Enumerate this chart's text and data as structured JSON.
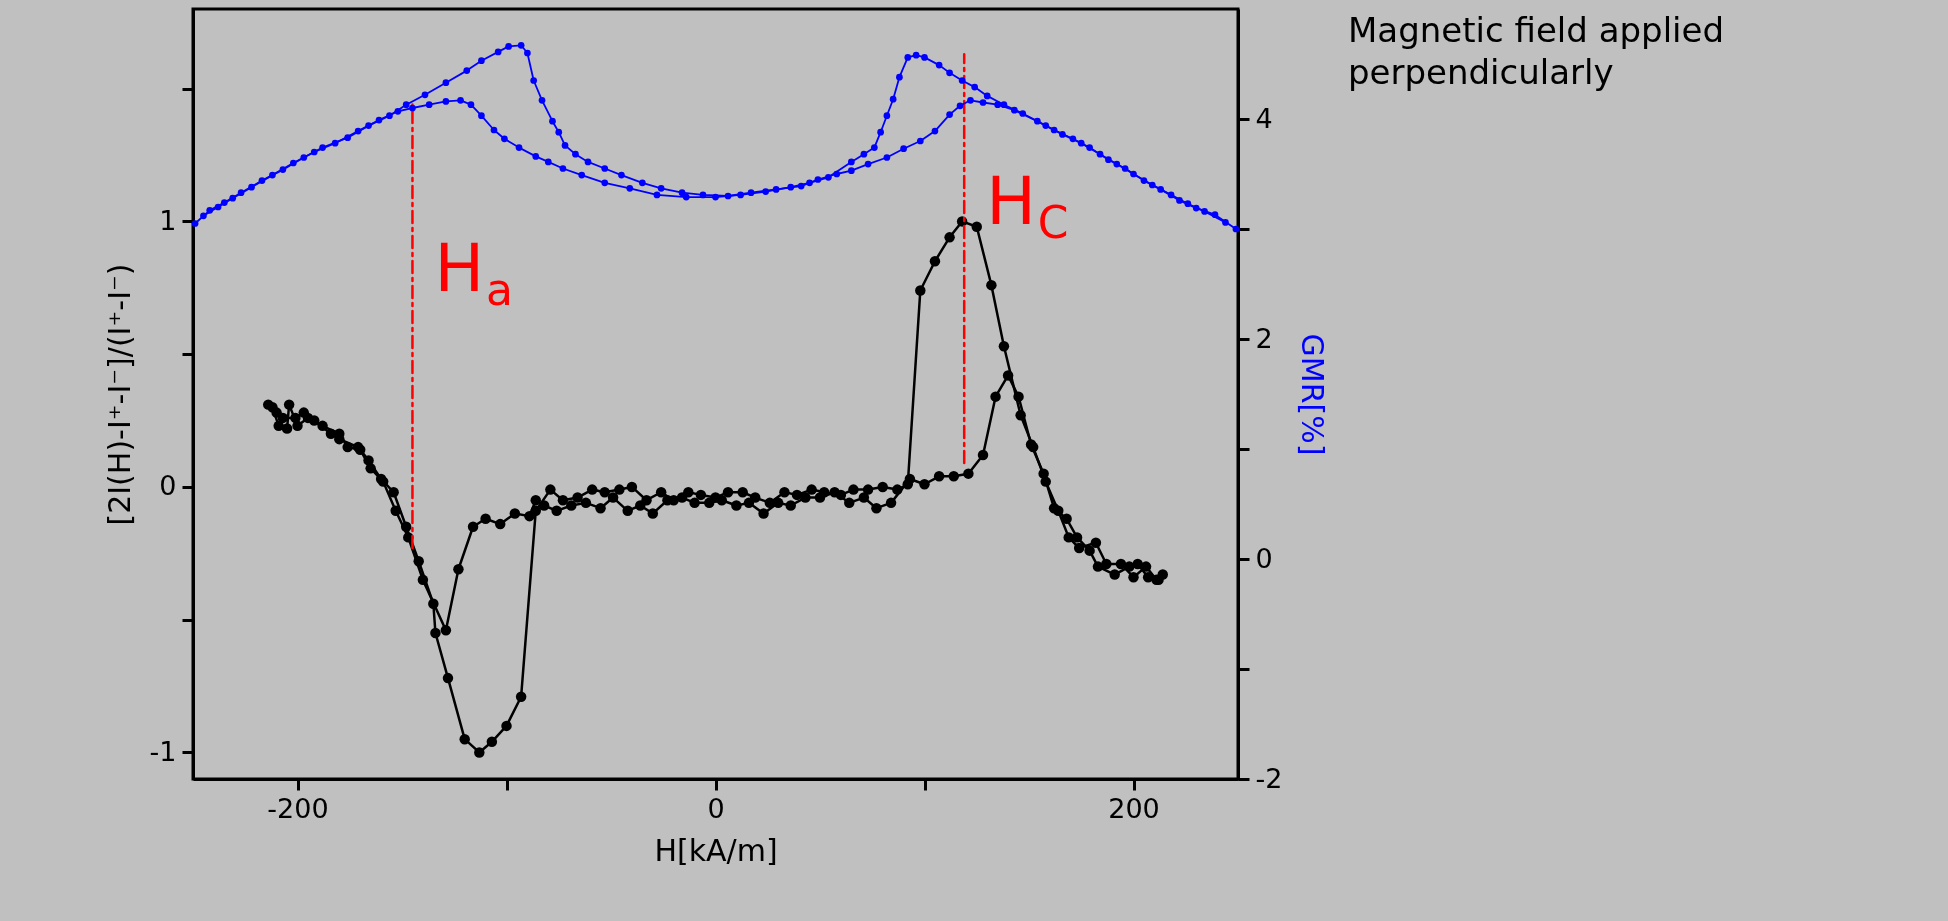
{
  "chart_data": {
    "type": "line",
    "xlabel": "H[kA/m]",
    "ylabel": "[2I(H)-I⁺-I⁻]/(I⁺-I⁻)",
    "y2label": "GMR[%]",
    "xlim": [
      -250,
      250
    ],
    "xticks": [
      -200,
      {
        "value": -100,
        "label": null
      },
      0,
      {
        "value": 100,
        "label": null
      },
      200
    ],
    "ylim": [
      -1.1,
      1.8
    ],
    "yticks": [
      -1,
      {
        "value": -0.5,
        "label": null
      },
      0,
      {
        "value": 0.5,
        "label": null
      },
      1,
      {
        "value": 1.5,
        "label": null
      }
    ],
    "y2lim": [
      -2,
      5
    ],
    "y2ticks": [
      -2,
      {
        "value": -1,
        "label": null
      },
      0,
      {
        "value": 1,
        "label": null
      },
      2,
      {
        "value": 3,
        "label": null
      },
      4
    ],
    "grid": false,
    "marker": "circle",
    "line_style": "solid",
    "series": [
      {
        "color": "#0000ff",
        "axis": "y2",
        "x": [
          -249,
          -242,
          -235,
          -227,
          -217,
          -207,
          -197,
          -188,
          -176,
          -166,
          -156,
          -148,
          -139,
          -129,
          -119,
          -112,
          -104,
          -99,
          -93,
          -90,
          -87,
          -83,
          -78,
          -75,
          -72,
          -67,
          -61,
          -53,
          -45,
          -35,
          -26,
          -16,
          -6,
          6,
          17,
          29,
          41,
          49,
          58,
          65,
          73,
          82,
          90,
          98,
          105,
          112,
          117,
          122,
          128,
          135,
          143,
          154,
          162,
          171,
          179,
          188,
          196,
          205,
          213,
          222,
          230,
          239,
          249
        ],
        "values": [
          3.05,
          3.17,
          3.24,
          3.33,
          3.44,
          3.54,
          3.65,
          3.74,
          3.83,
          3.94,
          4.03,
          4.13,
          4.22,
          4.33,
          4.44,
          4.53,
          4.61,
          4.66,
          4.67,
          4.6,
          4.35,
          4.17,
          3.98,
          3.88,
          3.76,
          3.68,
          3.61,
          3.55,
          3.49,
          3.42,
          3.37,
          3.33,
          3.31,
          3.3,
          3.33,
          3.36,
          3.39,
          3.45,
          3.5,
          3.53,
          3.59,
          3.65,
          3.73,
          3.8,
          3.89,
          4.04,
          4.12,
          4.17,
          4.15,
          4.13,
          4.08,
          3.98,
          3.9,
          3.82,
          3.74,
          3.63,
          3.55,
          3.44,
          3.36,
          3.26,
          3.19,
          3.13,
          3.0
        ]
      },
      {
        "color": "#0000ff",
        "axis": "y2",
        "x": [
          -245,
          -238,
          -231,
          -222,
          -212,
          -202,
          -192,
          -182,
          -171,
          -161,
          -152,
          -145,
          -137,
          -129,
          -122,
          -117,
          -112,
          -106,
          -101,
          -94,
          -86,
          -80,
          -73,
          -64,
          -53,
          -41,
          -28,
          -14,
          0,
          12,
          24,
          36,
          45,
          54,
          65,
          71,
          76,
          79,
          82,
          85,
          88,
          92,
          96,
          100,
          107,
          112,
          118,
          124,
          130,
          138,
          147,
          158,
          166,
          175,
          184,
          192,
          200,
          209,
          218,
          226,
          234,
          244
        ],
        "values": [
          3.12,
          3.2,
          3.28,
          3.38,
          3.49,
          3.6,
          3.7,
          3.78,
          3.89,
          3.99,
          4.07,
          4.1,
          4.13,
          4.16,
          4.17,
          4.13,
          4.03,
          3.9,
          3.82,
          3.74,
          3.66,
          3.61,
          3.55,
          3.49,
          3.42,
          3.37,
          3.31,
          3.29,
          3.29,
          3.31,
          3.34,
          3.38,
          3.42,
          3.47,
          3.61,
          3.68,
          3.74,
          3.88,
          4.03,
          4.18,
          4.38,
          4.56,
          4.58,
          4.56,
          4.49,
          4.42,
          4.35,
          4.29,
          4.21,
          4.13,
          4.05,
          3.94,
          3.86,
          3.78,
          3.68,
          3.59,
          3.5,
          3.4,
          3.31,
          3.23,
          3.16,
          3.06
        ]
      },
      {
        "color": "#000000",
        "x": [
          -214,
          -210,
          -207,
          -201,
          -197,
          -192,
          -184,
          -180,
          -171,
          -166,
          -160,
          -154,
          -148,
          -142,
          -135,
          -134,
          -128,
          -120,
          -113,
          -107,
          -100,
          -93,
          -86,
          -79,
          -73,
          -66,
          -59,
          -53,
          -46,
          -40,
          -33,
          -26,
          -20,
          -13,
          -7,
          0,
          6,
          13,
          19,
          26,
          33,
          39,
          46,
          52,
          60,
          66,
          73,
          80,
          87,
          92,
          98,
          105,
          112,
          118,
          125,
          132,
          138,
          146,
          152,
          158,
          164,
          169,
          174,
          182,
          187,
          194,
          200,
          206,
          211
        ],
        "values": [
          0.31,
          0.28,
          0.26,
          0.26,
          0.28,
          0.25,
          0.2,
          0.18,
          0.15,
          0.1,
          0.03,
          -0.02,
          -0.15,
          -0.28,
          -0.44,
          -0.55,
          -0.72,
          -0.95,
          -1.0,
          -0.96,
          -0.9,
          -0.79,
          -0.09,
          -0.01,
          -0.05,
          -0.04,
          -0.01,
          -0.02,
          -0.01,
          0.0,
          -0.05,
          -0.02,
          -0.05,
          -0.02,
          -0.03,
          -0.04,
          -0.02,
          -0.02,
          -0.04,
          -0.06,
          -0.02,
          -0.03,
          -0.01,
          -0.02,
          -0.03,
          -0.01,
          -0.01,
          0.0,
          -0.01,
          0.01,
          0.74,
          0.85,
          0.94,
          1.0,
          0.98,
          0.76,
          0.53,
          0.27,
          0.15,
          0.02,
          -0.09,
          -0.19,
          -0.23,
          -0.21,
          -0.29,
          -0.29,
          -0.34,
          -0.3,
          -0.35
        ]
      },
      {
        "color": "#000000",
        "x": [
          -212,
          -209,
          -205,
          -204,
          -200,
          -195,
          -188,
          -180,
          -176,
          -170,
          -165,
          -159,
          -153,
          -147,
          -140,
          -129,
          -123,
          -116,
          -110,
          -103,
          -96,
          -89,
          -86,
          -82,
          -76,
          -69,
          -62,
          -55,
          -49,
          -42,
          -36,
          -30,
          -23,
          -16,
          -10,
          -3,
          3,
          10,
          16,
          23,
          30,
          36,
          43,
          50,
          57,
          64,
          71,
          77,
          84,
          93,
          100,
          107,
          114,
          121,
          128,
          134,
          140,
          145,
          151,
          157,
          162,
          168,
          173,
          179,
          183,
          191,
          198,
          202,
          207,
          212,
          214
        ],
        "values": [
          0.3,
          0.23,
          0.22,
          0.31,
          0.23,
          0.26,
          0.23,
          0.2,
          0.15,
          0.14,
          0.07,
          0.02,
          -0.09,
          -0.19,
          -0.35,
          -0.54,
          -0.31,
          -0.15,
          -0.12,
          -0.14,
          -0.1,
          -0.11,
          -0.05,
          -0.07,
          -0.09,
          -0.07,
          -0.06,
          -0.08,
          -0.04,
          -0.09,
          -0.07,
          -0.1,
          -0.05,
          -0.04,
          -0.06,
          -0.06,
          -0.05,
          -0.07,
          -0.06,
          -0.1,
          -0.06,
          -0.07,
          -0.04,
          -0.04,
          -0.02,
          -0.06,
          -0.04,
          -0.08,
          -0.06,
          0.03,
          0.01,
          0.04,
          0.04,
          0.05,
          0.12,
          0.34,
          0.42,
          0.34,
          0.16,
          0.05,
          -0.08,
          -0.12,
          -0.19,
          -0.24,
          -0.3,
          -0.33,
          -0.3,
          -0.29,
          -0.34,
          -0.35,
          -0.33
        ]
      },
      {
        "type": "line",
        "color": "#ff0000",
        "marker": "none",
        "line_style": "dashed",
        "x": [
          -145,
          -145
        ],
        "values": [
          -0.23,
          1.44
        ]
      },
      {
        "type": "line",
        "color": "#ff0000",
        "marker": "none",
        "line_style": "dashed",
        "x": [
          119,
          119
        ],
        "values": [
          0.09,
          1.63
        ]
      }
    ],
    "annotations": [
      "H$_{a}$",
      "H$_{C}$",
      "Magnetic field applied perpendicularly"
    ]
  }
}
